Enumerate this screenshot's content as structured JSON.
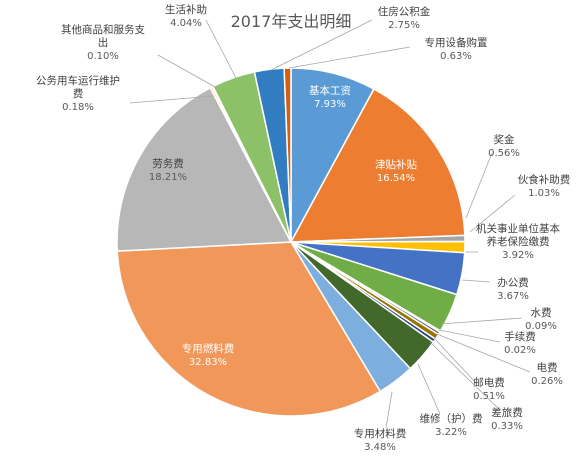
{
  "chart_data": {
    "type": "pie",
    "title": "2017年支出明细",
    "slices": [
      {
        "label": "基本工资",
        "value_pct": "7.93%",
        "value": 7.93,
        "color": "#5b9bd5"
      },
      {
        "label": "津贴补贴",
        "value_pct": "16.54%",
        "value": 16.54,
        "color": "#ed7d31"
      },
      {
        "label": "奖金",
        "value_pct": "0.56%",
        "value": 0.56,
        "color": "#a5a5a5"
      },
      {
        "label": "伙食补助费",
        "value_pct": "1.03%",
        "value": 1.03,
        "color": "#ffc000"
      },
      {
        "label": "机关事业单位基本养老保险缴费",
        "value_pct": "3.92%",
        "value": 3.92,
        "color": "#4472c4"
      },
      {
        "label": "办公费",
        "value_pct": "3.67%",
        "value": 3.67,
        "color": "#70ad47"
      },
      {
        "label": "水费",
        "value_pct": "0.09%",
        "value": 0.09,
        "color": "#255e91"
      },
      {
        "label": "手续费",
        "value_pct": "0.02%",
        "value": 0.02,
        "color": "#9e480e"
      },
      {
        "label": "电费",
        "value_pct": "0.26%",
        "value": 0.26,
        "color": "#636363"
      },
      {
        "label": "邮电费",
        "value_pct": "0.51%",
        "value": 0.51,
        "color": "#997300"
      },
      {
        "label": "差旅费",
        "value_pct": "0.33%",
        "value": 0.33,
        "color": "#264478"
      },
      {
        "label": "维修（护）费",
        "value_pct": "3.22%",
        "value": 3.22,
        "color": "#43682b"
      },
      {
        "label": "专用材料费",
        "value_pct": "3.48%",
        "value": 3.48,
        "color": "#7cafdd"
      },
      {
        "label": "专用燃料费",
        "value_pct": "32.83%",
        "value": 32.83,
        "color": "#f1975a"
      },
      {
        "label": "劳务费",
        "value_pct": "18.21%",
        "value": 18.21,
        "color": "#b7b7b7"
      },
      {
        "label": "公务用车运行维护费",
        "value_pct": "0.18%",
        "value": 0.18,
        "color": "#ffcd33"
      },
      {
        "label": "其他商品和服务支出",
        "value_pct": "0.10%",
        "value": 0.1,
        "color": "#698ed0"
      },
      {
        "label": "生活补助",
        "value_pct": "4.04%",
        "value": 4.04,
        "color": "#8cc168"
      },
      {
        "label": "住房公积金",
        "value_pct": "2.75%",
        "value": 2.75,
        "color": "#327dc2"
      },
      {
        "label": "专用设备购置",
        "value_pct": "0.63%",
        "value": 0.63,
        "color": "#d26012"
      }
    ]
  }
}
